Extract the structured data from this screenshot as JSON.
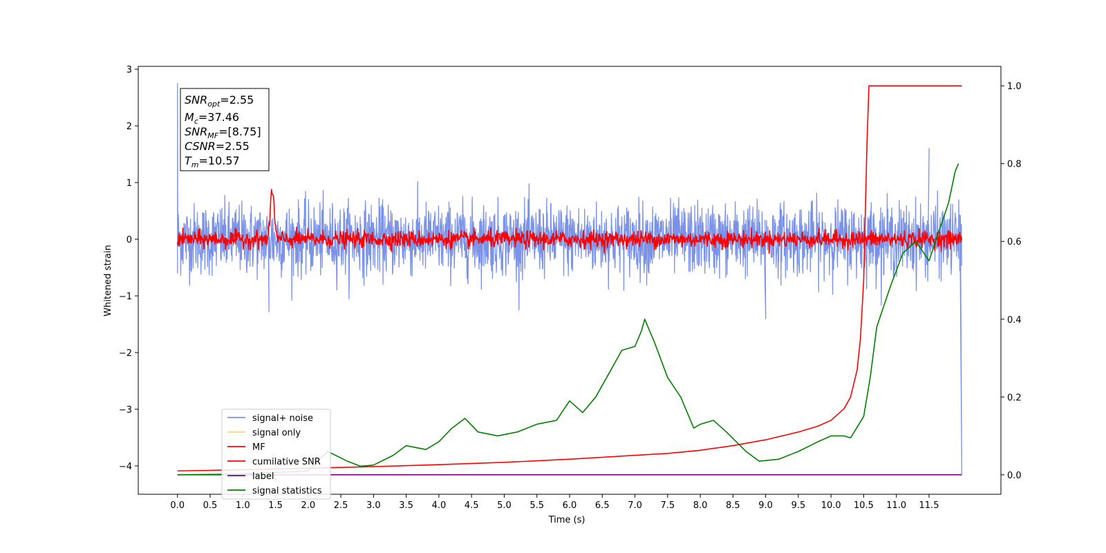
{
  "chart_data": {
    "type": "line",
    "xlabel": "Time (s)",
    "ylabel": "Whitened strain",
    "xlim": [
      -0.6,
      12.6
    ],
    "ylim_left": [
      -4.5,
      3.05
    ],
    "ylim_right": [
      -0.05,
      1.05
    ],
    "x_ticks": [
      "0.0",
      "0.5",
      "1.0",
      "1.5",
      "2.0",
      "2.5",
      "3.0",
      "3.5",
      "4.0",
      "4.5",
      "5.0",
      "5.5",
      "6.0",
      "6.5",
      "7.0",
      "7.5",
      "8.0",
      "8.5",
      "9.0",
      "9.5",
      "10.0",
      "10.5",
      "11.0",
      "11.5"
    ],
    "y_ticks_left": [
      3,
      2,
      1,
      0,
      -1,
      -2,
      -3,
      -4
    ],
    "y_ticks_right": [
      0.0,
      0.2,
      0.4,
      0.6,
      0.8,
      1.0
    ],
    "info_box": {
      "snr_opt": "2.55",
      "mc": "37.46",
      "snr_mf": "[8.75]",
      "csnr": "2.55",
      "tm": "10.57"
    },
    "legend": [
      {
        "label": "signal+ noise",
        "color": "#7a93e8"
      },
      {
        "label": "signal only",
        "color": "#ffd27f"
      },
      {
        "label": "MF",
        "color": "#ff0000"
      },
      {
        "label": "cumilative SNR",
        "color": "#ff0000"
      },
      {
        "label": "label",
        "color": "#800080"
      },
      {
        "label": "signal statistics",
        "color": "#008000"
      }
    ],
    "series": [
      {
        "name": "signal+ noise",
        "axis": "left",
        "color": "#7a93e8",
        "description_envelope": {
          "mean": 0.0,
          "amplitude_typical": 0.5,
          "max": 2.75,
          "min": -4.15
        },
        "spikes": [
          [
            0.0,
            2.75
          ],
          [
            0.0,
            -0.6
          ],
          [
            1.4,
            -1.28
          ],
          [
            9.0,
            -1.4
          ],
          [
            11.5,
            1.6
          ],
          [
            12.0,
            -4.15
          ]
        ]
      },
      {
        "name": "MF",
        "axis": "left",
        "color": "#ff0000",
        "description_envelope": {
          "mean": 0.0,
          "amplitude_typical": 0.12
        },
        "peak": [
          1.45,
          1.0
        ]
      },
      {
        "name": "cumilative SNR",
        "axis": "right",
        "color": "#ff0000",
        "points": [
          [
            0.0,
            0.01
          ],
          [
            1.0,
            0.013
          ],
          [
            2.0,
            0.017
          ],
          [
            3.0,
            0.021
          ],
          [
            4.0,
            0.026
          ],
          [
            5.0,
            0.032
          ],
          [
            6.0,
            0.04
          ],
          [
            7.0,
            0.05
          ],
          [
            7.5,
            0.055
          ],
          [
            8.0,
            0.063
          ],
          [
            8.5,
            0.075
          ],
          [
            9.0,
            0.09
          ],
          [
            9.5,
            0.11
          ],
          [
            9.8,
            0.125
          ],
          [
            10.0,
            0.14
          ],
          [
            10.2,
            0.17
          ],
          [
            10.3,
            0.2
          ],
          [
            10.4,
            0.27
          ],
          [
            10.45,
            0.35
          ],
          [
            10.5,
            0.5
          ],
          [
            10.55,
            0.85
          ],
          [
            10.58,
            1.0
          ],
          [
            12.0,
            1.0
          ]
        ]
      },
      {
        "name": "label",
        "axis": "right",
        "color": "#800080",
        "points": [
          [
            0.0,
            0.0
          ],
          [
            12.0,
            0.0
          ]
        ]
      },
      {
        "name": "signal statistics",
        "axis": "right",
        "color": "#008000",
        "points": [
          [
            0.0,
            0.0
          ],
          [
            0.5,
            0.001
          ],
          [
            1.0,
            0.002
          ],
          [
            1.5,
            0.006
          ],
          [
            2.0,
            0.01
          ],
          [
            2.3,
            0.06
          ],
          [
            2.6,
            0.035
          ],
          [
            2.8,
            0.022
          ],
          [
            3.0,
            0.025
          ],
          [
            3.3,
            0.05
          ],
          [
            3.5,
            0.075
          ],
          [
            3.8,
            0.065
          ],
          [
            4.0,
            0.085
          ],
          [
            4.2,
            0.12
          ],
          [
            4.4,
            0.145
          ],
          [
            4.6,
            0.11
          ],
          [
            4.9,
            0.1
          ],
          [
            5.2,
            0.11
          ],
          [
            5.5,
            0.13
          ],
          [
            5.8,
            0.14
          ],
          [
            6.0,
            0.19
          ],
          [
            6.2,
            0.16
          ],
          [
            6.4,
            0.2
          ],
          [
            6.6,
            0.26
          ],
          [
            6.8,
            0.32
          ],
          [
            7.0,
            0.33
          ],
          [
            7.1,
            0.37
          ],
          [
            7.15,
            0.4
          ],
          [
            7.3,
            0.34
          ],
          [
            7.5,
            0.25
          ],
          [
            7.7,
            0.2
          ],
          [
            7.9,
            0.12
          ],
          [
            8.0,
            0.13
          ],
          [
            8.2,
            0.14
          ],
          [
            8.4,
            0.11
          ],
          [
            8.7,
            0.06
          ],
          [
            8.9,
            0.035
          ],
          [
            9.2,
            0.04
          ],
          [
            9.5,
            0.06
          ],
          [
            9.8,
            0.085
          ],
          [
            10.0,
            0.1
          ],
          [
            10.2,
            0.1
          ],
          [
            10.3,
            0.095
          ],
          [
            10.5,
            0.15
          ],
          [
            10.6,
            0.25
          ],
          [
            10.7,
            0.38
          ],
          [
            10.9,
            0.48
          ],
          [
            11.1,
            0.57
          ],
          [
            11.3,
            0.6
          ],
          [
            11.5,
            0.55
          ],
          [
            11.6,
            0.6
          ],
          [
            11.8,
            0.7
          ],
          [
            11.9,
            0.78
          ],
          [
            11.95,
            0.8
          ]
        ]
      }
    ]
  }
}
